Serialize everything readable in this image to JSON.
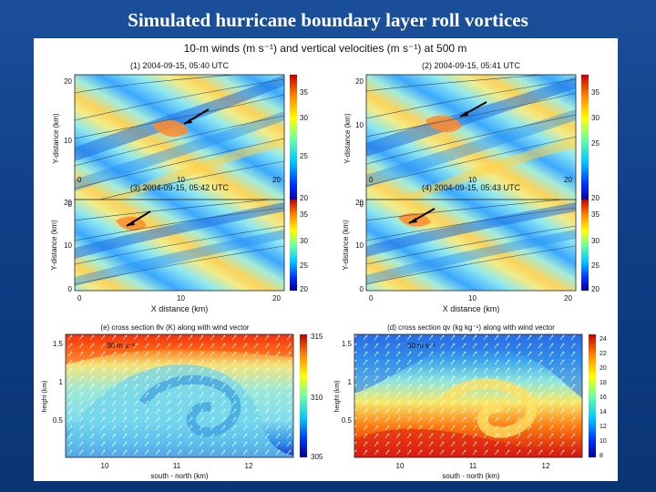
{
  "slide": {
    "title": "Simulated hurricane boundary layer roll vortices"
  },
  "figure": {
    "main_title": "10-m winds (m s⁻¹) and vertical velocities (m s⁻¹) at 500 m",
    "top_panels": [
      {
        "title": "(1) 2004-09-15, 05:40 UTC",
        "ylabel": "Y-distance (km)",
        "xlabel": ""
      },
      {
        "title": "(2) 2004-09-15, 05:41 UTC",
        "ylabel": "Y-distance (km)",
        "xlabel": ""
      },
      {
        "title": "(3) 2004-09-15, 05:42 UTC",
        "ylabel": "Y-distance (km)",
        "xlabel": "X distance (km)"
      },
      {
        "title": "(4) 2004-09-15, 05:43 UTC",
        "ylabel": "Y-distance (km)",
        "xlabel": "X distance (km)"
      }
    ],
    "top_axes": {
      "x_ticks": [
        "0",
        "10",
        "20"
      ],
      "y_ticks": [
        "0",
        "10",
        "20"
      ],
      "colorbar_ticks": [
        "20",
        "25",
        "30",
        "35"
      ]
    },
    "cross_sections": [
      {
        "title": "(e) cross section θv (K) along with wind vector",
        "ylabel": "height (km)",
        "xlabel": "south - north (km)",
        "vector_label": "30 m s⁻¹",
        "x_ticks": [
          "10",
          "11",
          "12"
        ],
        "y_ticks": [
          "0.5",
          "1",
          "1.5"
        ],
        "colorbar_ticks": [
          "305",
          "310",
          "315"
        ]
      },
      {
        "title": "(d) cross section qv (kg kg⁻¹) along with wind vector",
        "ylabel": "height (km)",
        "xlabel": "south - north (km)",
        "vector_label": "30 m s⁻¹",
        "x_ticks": [
          "10",
          "11",
          "12"
        ],
        "y_ticks": [
          "0.5",
          "1",
          "1.5"
        ],
        "colorbar_ticks": [
          "8",
          "10",
          "12",
          "14",
          "16",
          "18",
          "20",
          "22",
          "24"
        ]
      }
    ]
  },
  "colors": {
    "background": "#12438c",
    "jet_dark_blue": "#00008f",
    "jet_blue": "#0050ff",
    "jet_cyan": "#00e0ff",
    "jet_yellow": "#ffee00",
    "jet_orange": "#ff8000",
    "jet_red": "#c80000"
  }
}
